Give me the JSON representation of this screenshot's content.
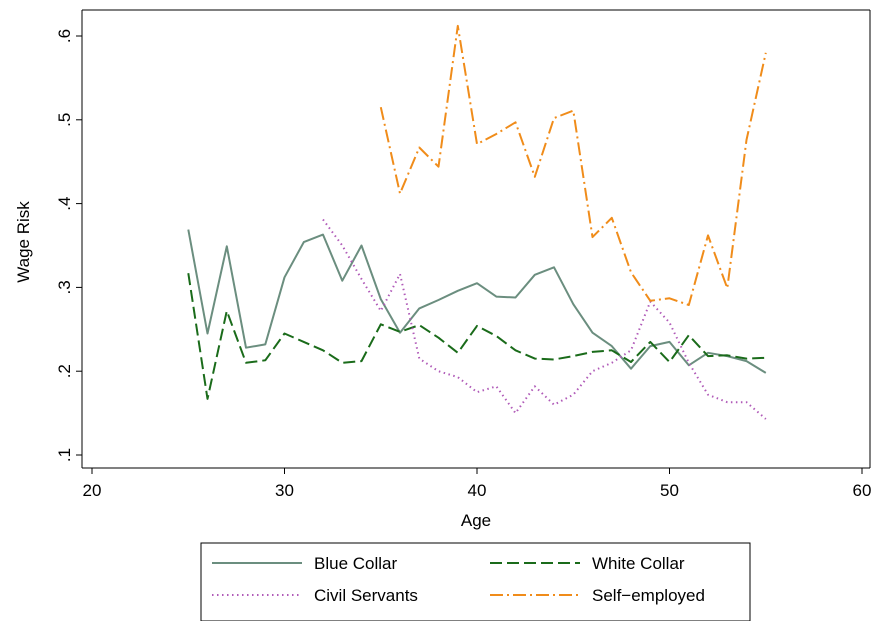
{
  "chart_data": {
    "type": "line",
    "xlabel": "Age",
    "ylabel": "Wage Risk",
    "xlim": [
      20,
      60
    ],
    "ylim": [
      0.1,
      0.6
    ],
    "xticks": [
      "20",
      "30",
      "40",
      "50",
      "60"
    ],
    "yticks": [
      ".1",
      ".2",
      ".3",
      ".4",
      ".5",
      ".6"
    ],
    "grid": false,
    "legend_position": "bottom",
    "series": [
      {
        "name": "Blue Collar",
        "color": "#6b8e7f",
        "dash": "solid",
        "x": [
          25,
          26,
          27,
          28,
          29,
          30,
          31,
          32,
          33,
          34,
          35,
          36,
          37,
          38,
          39,
          40,
          41,
          42,
          43,
          44,
          45,
          46,
          47,
          48,
          49,
          50,
          51,
          52,
          53,
          54,
          55
        ],
        "values": [
          0.369,
          0.245,
          0.349,
          0.228,
          0.232,
          0.312,
          0.354,
          0.363,
          0.308,
          0.35,
          0.286,
          0.246,
          0.275,
          0.285,
          0.296,
          0.305,
          0.289,
          0.288,
          0.315,
          0.324,
          0.28,
          0.246,
          0.23,
          0.203,
          0.23,
          0.235,
          0.207,
          0.222,
          0.218,
          0.212,
          0.198
        ]
      },
      {
        "name": "White Collar",
        "color": "#1a6b1a",
        "dash": "dash",
        "x": [
          25,
          26,
          27,
          28,
          29,
          30,
          31,
          32,
          33,
          34,
          35,
          36,
          37,
          38,
          39,
          40,
          41,
          42,
          43,
          44,
          45,
          46,
          47,
          48,
          49,
          50,
          51,
          52,
          53,
          54,
          55
        ],
        "values": [
          0.317,
          0.167,
          0.272,
          0.21,
          0.213,
          0.245,
          0.235,
          0.225,
          0.21,
          0.212,
          0.256,
          0.247,
          0.255,
          0.24,
          0.222,
          0.254,
          0.242,
          0.225,
          0.215,
          0.214,
          0.218,
          0.223,
          0.225,
          0.211,
          0.235,
          0.211,
          0.243,
          0.218,
          0.219,
          0.215,
          0.216
        ]
      },
      {
        "name": "Civil Servants",
        "color": "#b05ab8",
        "dash": "dot",
        "x": [
          32,
          33,
          34,
          35,
          36,
          37,
          38,
          39,
          40,
          41,
          42,
          43,
          44,
          45,
          46,
          47,
          48,
          49,
          50,
          51,
          52,
          53,
          54,
          55
        ],
        "values": [
          0.381,
          0.35,
          0.31,
          0.272,
          0.316,
          0.215,
          0.2,
          0.193,
          0.175,
          0.182,
          0.15,
          0.182,
          0.16,
          0.172,
          0.2,
          0.21,
          0.225,
          0.283,
          0.258,
          0.21,
          0.172,
          0.163,
          0.163,
          0.143
        ]
      },
      {
        "name": "Self−employed",
        "color": "#f08c1a",
        "dash": "dashdot",
        "x": [
          35,
          36,
          37,
          38,
          39,
          40,
          41,
          42,
          43,
          44,
          45,
          46,
          47,
          48,
          49,
          50,
          51,
          52,
          53,
          54,
          55
        ],
        "values": [
          0.515,
          0.412,
          0.467,
          0.444,
          0.612,
          0.471,
          0.483,
          0.497,
          0.432,
          0.502,
          0.511,
          0.36,
          0.383,
          0.318,
          0.284,
          0.287,
          0.279,
          0.362,
          0.299,
          0.476,
          0.58
        ]
      }
    ]
  }
}
